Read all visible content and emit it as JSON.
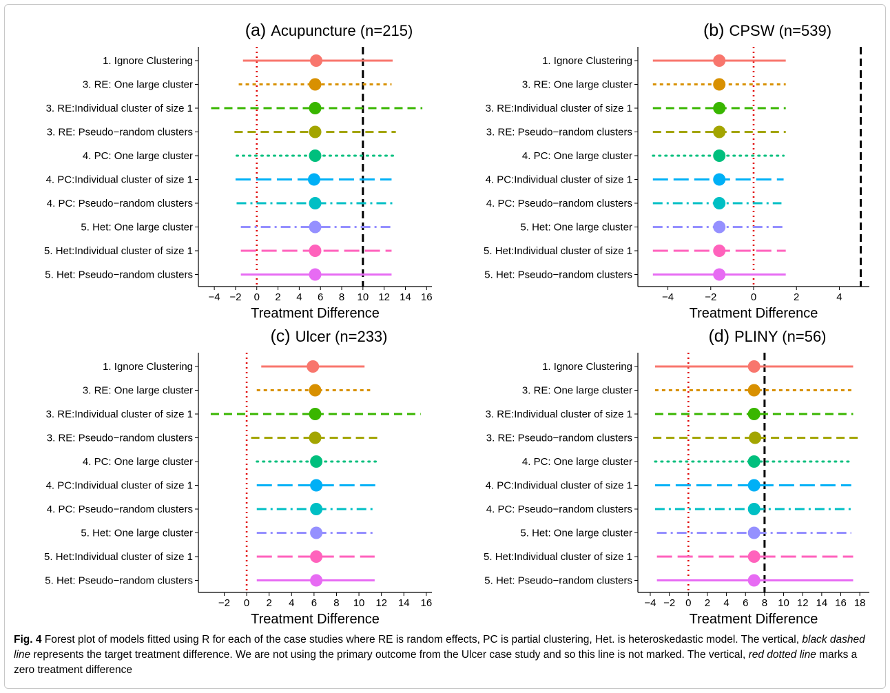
{
  "chart_data": [
    {
      "type": "forest",
      "title_prefix": "(a)",
      "title_main": "Acupuncture",
      "title_n": "(n=215)",
      "xlabel": "Treatment Difference",
      "xlim": [
        -5.5,
        16.5
      ],
      "xticks": [
        -4,
        -2,
        0,
        2,
        4,
        6,
        8,
        10,
        12,
        14,
        16
      ],
      "target_line": 10,
      "zero_line": 0,
      "rows": [
        {
          "label": "1. Ignore Clustering",
          "est": 5.6,
          "lo": -1.3,
          "hi": 12.8
        },
        {
          "label": "3. RE: One large cluster",
          "est": 5.5,
          "lo": -1.7,
          "hi": 12.7
        },
        {
          "label": "3. RE:Individual cluster of size 1",
          "est": 5.5,
          "lo": -4.3,
          "hi": 15.6
        },
        {
          "label": "3. RE: Pseudo−random clusters",
          "est": 5.5,
          "lo": -2.1,
          "hi": 13.1
        },
        {
          "label": "4. PC: One large cluster",
          "est": 5.5,
          "lo": -1.9,
          "hi": 13.0
        },
        {
          "label": "4. PC:Individual cluster of size 1",
          "est": 5.4,
          "lo": -2.0,
          "hi": 12.7
        },
        {
          "label": "4. PC: Pseudo−random clusters",
          "est": 5.5,
          "lo": -1.9,
          "hi": 12.8
        },
        {
          "label": "5. Het: One large cluster",
          "est": 5.5,
          "lo": -1.5,
          "hi": 12.7
        },
        {
          "label": "5. Het:Individual cluster of size 1",
          "est": 5.5,
          "lo": -1.5,
          "hi": 12.7
        },
        {
          "label": "5. Het: Pseudo−random clusters",
          "est": 5.5,
          "lo": -1.5,
          "hi": 12.7
        }
      ]
    },
    {
      "type": "forest",
      "title_prefix": "(b)",
      "title_main": "CPSW",
      "title_n": "(n=539)",
      "xlabel": "Treatment Difference",
      "xlim": [
        -5.4,
        5.4
      ],
      "xticks": [
        -4,
        -2,
        0,
        2,
        4
      ],
      "target_line": 5,
      "zero_line": 0,
      "rows": [
        {
          "label": "1. Ignore Clustering",
          "est": -1.6,
          "lo": -4.7,
          "hi": 1.5
        },
        {
          "label": "3. RE: One large cluster",
          "est": -1.6,
          "lo": -4.7,
          "hi": 1.5
        },
        {
          "label": "3. RE:Individual cluster of size 1",
          "est": -1.6,
          "lo": -4.7,
          "hi": 1.5
        },
        {
          "label": "3. RE: Pseudo−random clusters",
          "est": -1.6,
          "lo": -4.7,
          "hi": 1.5
        },
        {
          "label": "4. PC: One large cluster",
          "est": -1.6,
          "lo": -4.7,
          "hi": 1.4
        },
        {
          "label": "4. PC:Individual cluster of size 1",
          "est": -1.6,
          "lo": -4.7,
          "hi": 1.4
        },
        {
          "label": "4. PC: Pseudo−random clusters",
          "est": -1.6,
          "lo": -4.7,
          "hi": 1.3
        },
        {
          "label": "5. Het: One large cluster",
          "est": -1.6,
          "lo": -4.7,
          "hi": 1.5
        },
        {
          "label": "5. Het:Individual cluster of size 1",
          "est": -1.6,
          "lo": -4.7,
          "hi": 1.5
        },
        {
          "label": "5. Het: Pseudo−random clusters",
          "est": -1.6,
          "lo": -4.7,
          "hi": 1.5
        }
      ]
    },
    {
      "type": "forest",
      "title_prefix": "(c)",
      "title_main": "Ulcer",
      "title_n": "(n=233)",
      "xlabel": "Treatment Difference",
      "xlim": [
        -4.3,
        16.5
      ],
      "xticks": [
        -2,
        0,
        2,
        4,
        6,
        8,
        10,
        12,
        14,
        16
      ],
      "target_line": null,
      "zero_line": 0,
      "rows": [
        {
          "label": "1. Ignore Clustering",
          "est": 5.9,
          "lo": 1.3,
          "hi": 10.5
        },
        {
          "label": "3. RE: One large cluster",
          "est": 6.1,
          "lo": 0.9,
          "hi": 11.0
        },
        {
          "label": "3. RE:Individual cluster of size 1",
          "est": 6.1,
          "lo": -3.2,
          "hi": 15.5
        },
        {
          "label": "3. RE: Pseudo−random clusters",
          "est": 6.1,
          "lo": 0.4,
          "hi": 11.9
        },
        {
          "label": "4. PC: One large cluster",
          "est": 6.2,
          "lo": 0.9,
          "hi": 11.5
        },
        {
          "label": "4. PC:Individual cluster of size 1",
          "est": 6.2,
          "lo": 0.9,
          "hi": 11.5
        },
        {
          "label": "4. PC: Pseudo−random clusters",
          "est": 6.2,
          "lo": 0.9,
          "hi": 11.3
        },
        {
          "label": "5. Het: One large cluster",
          "est": 6.2,
          "lo": 0.9,
          "hi": 11.4
        },
        {
          "label": "5. Het:Individual cluster of size 1",
          "est": 6.2,
          "lo": 0.9,
          "hi": 11.4
        },
        {
          "label": "5. Het: Pseudo−random clusters",
          "est": 6.2,
          "lo": 0.9,
          "hi": 11.4
        }
      ]
    },
    {
      "type": "forest",
      "title_prefix": "(d)",
      "title_main": "PLINY",
      "title_n": "(n=56)",
      "xlabel": "Treatment Difference",
      "xlim": [
        -5.3,
        19.0
      ],
      "xticks": [
        -4,
        -2,
        0,
        2,
        4,
        6,
        8,
        10,
        12,
        14,
        16,
        18
      ],
      "target_line": 8,
      "zero_line": 0,
      "rows": [
        {
          "label": "1. Ignore Clustering",
          "est": 6.9,
          "lo": -3.5,
          "hi": 17.3
        },
        {
          "label": "3. RE: One large cluster",
          "est": 6.9,
          "lo": -3.5,
          "hi": 17.3
        },
        {
          "label": "3. RE:Individual cluster of size 1",
          "est": 6.9,
          "lo": -3.5,
          "hi": 17.3
        },
        {
          "label": "3. RE: Pseudo−random clusters",
          "est": 7.0,
          "lo": -3.7,
          "hi": 17.8
        },
        {
          "label": "4. PC: One large cluster",
          "est": 6.9,
          "lo": -3.5,
          "hi": 17.3
        },
        {
          "label": "4. PC:Individual cluster of size 1",
          "est": 6.9,
          "lo": -3.5,
          "hi": 17.1
        },
        {
          "label": "4. PC: Pseudo−random clusters",
          "est": 6.9,
          "lo": -3.5,
          "hi": 17.3
        },
        {
          "label": "5. Het: One large cluster",
          "est": 6.9,
          "lo": -3.3,
          "hi": 17.1
        },
        {
          "label": "5. Het:Individual cluster of size 1",
          "est": 6.9,
          "lo": -3.3,
          "hi": 17.3
        },
        {
          "label": "5. Het: Pseudo−random clusters",
          "est": 6.9,
          "lo": -3.3,
          "hi": 17.3
        }
      ]
    }
  ],
  "row_styles": [
    {
      "color": "#F8766D",
      "dash": "solid"
    },
    {
      "color": "#D89000",
      "dash": "short-dash"
    },
    {
      "color": "#39B600",
      "dash": "dash"
    },
    {
      "color": "#A3A500",
      "dash": "dash"
    },
    {
      "color": "#00BF7D",
      "dash": "dot"
    },
    {
      "color": "#00B0F6",
      "dash": "long-dash"
    },
    {
      "color": "#00BFC4",
      "dash": "dash-dot"
    },
    {
      "color": "#9590FF",
      "dash": "dash-dot"
    },
    {
      "color": "#FF62BC",
      "dash": "long-dash"
    },
    {
      "color": "#E76BF3",
      "dash": "solid"
    }
  ],
  "reference_lines": {
    "target_color": "#000000",
    "zero_color": "#E00000"
  },
  "caption": {
    "fig_label": "Fig. 4",
    "text1": " Forest plot of models fitted using R for each of the case studies where RE is random effects, PC is partial clustering, Het. is heteroskedastic model. The vertical, ",
    "em1": "black dashed line",
    "text2": " represents the target treatment difference. We are not using the primary outcome from the Ulcer case study and so this line is not marked. The vertical, ",
    "em2": "red dotted line",
    "text3": " marks a zero treatment difference"
  }
}
